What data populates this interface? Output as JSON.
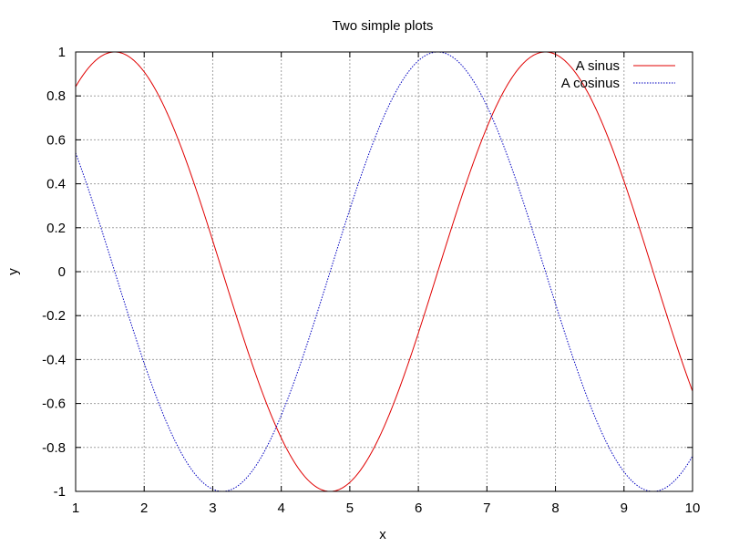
{
  "chart_data": {
    "type": "line",
    "title": "Two simple plots",
    "xlabel": "x",
    "ylabel": "y",
    "xlim": [
      1,
      10
    ],
    "ylim": [
      -1,
      1
    ],
    "x_ticks": [
      "1",
      "2",
      "3",
      "4",
      "5",
      "6",
      "7",
      "8",
      "9",
      "10"
    ],
    "y_ticks": [
      "-1",
      "-0.8",
      "-0.6",
      "-0.4",
      "-0.2",
      "0",
      "0.2",
      "0.4",
      "0.6",
      "0.8",
      "1"
    ],
    "grid": true,
    "legend_position": "top-right",
    "series": [
      {
        "name": "A sinus",
        "function": "sin(x)",
        "color": "#e00000",
        "style": "solid"
      },
      {
        "name": "A cosinus",
        "function": "cos(x)",
        "color": "#0000c0",
        "style": "dotted"
      }
    ]
  }
}
